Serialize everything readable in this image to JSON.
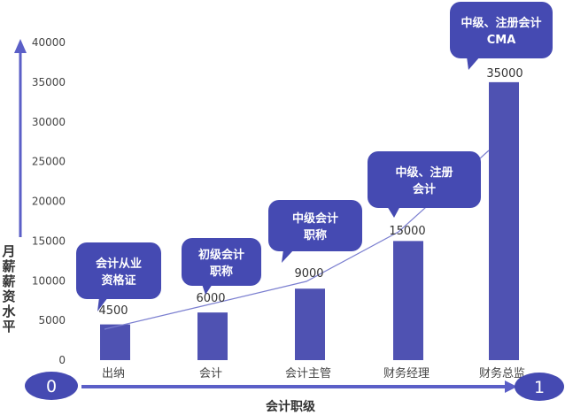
{
  "chart_data": {
    "type": "bar",
    "categories": [
      "出纳",
      "会计",
      "会计主管",
      "财务经理",
      "财务总监"
    ],
    "values": [
      4500,
      6000,
      9000,
      15000,
      35000
    ],
    "data_labels": [
      "4500",
      "6000",
      "9000",
      "15000",
      "35000"
    ],
    "y_ticks": [
      0,
      5000,
      10000,
      15000,
      20000,
      25000,
      30000,
      35000,
      40000
    ],
    "ylim": [
      0,
      40000
    ],
    "ylabel": "月薪薪资水平",
    "xlabel": "会计职级",
    "grid": false,
    "bar_color": "#4f52b2",
    "trend_line_color": "#7b7fd0",
    "axis_arrow_color": "#5b5fc7",
    "callouts": [
      {
        "text_lines": [
          "会计从业",
          "资格证"
        ]
      },
      {
        "text_lines": [
          "初级会计",
          "职称"
        ]
      },
      {
        "text_lines": [
          "中级会计",
          "职称"
        ]
      },
      {
        "text_lines": [
          "中级、注册",
          "会计"
        ]
      },
      {
        "text_lines": [
          "中级、注册会计",
          "CMA"
        ]
      }
    ],
    "start_marker": "0",
    "end_marker": "1"
  }
}
